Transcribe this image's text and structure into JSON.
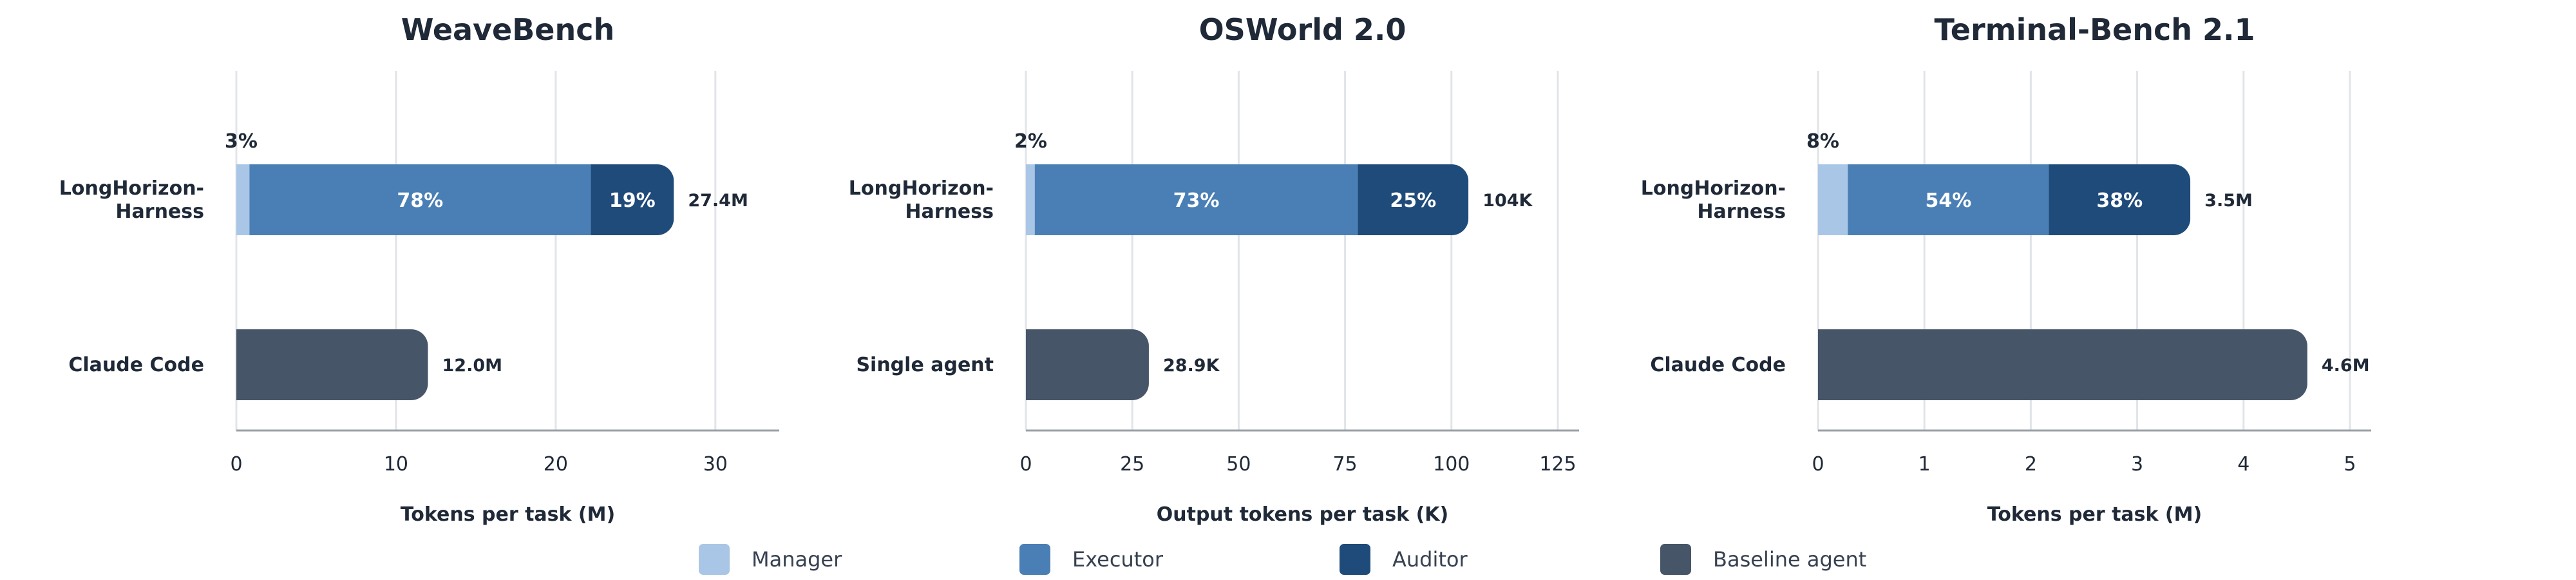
{
  "colors": {
    "manager": "#a9c6e6",
    "executor": "#4a7fb5",
    "auditor": "#1f4b7a",
    "baseline": "#475569",
    "grid": "#e1e4e8",
    "axis": "#9aa0a6"
  },
  "legend": [
    {
      "key": "manager",
      "label": "Manager",
      "color": "#a9c6e6"
    },
    {
      "key": "executor",
      "label": "Executor",
      "color": "#4a7fb5"
    },
    {
      "key": "auditor",
      "label": "Auditor",
      "color": "#1f4b7a"
    },
    {
      "key": "baseline",
      "label": "Baseline agent",
      "color": "#475569"
    }
  ],
  "chart_data": [
    {
      "type": "bar",
      "orientation": "horizontal",
      "stacked": true,
      "title": "WeaveBench",
      "xlabel": "Tokens per task (M)",
      "xlim": [
        0,
        34
      ],
      "xticks": [
        0,
        10,
        20,
        30
      ],
      "grid": true,
      "categories": [
        "LongHorizon-\nHarness",
        "Claude Code"
      ],
      "bars": [
        {
          "category": "LongHorizon-\nHarness",
          "total": 27.4,
          "total_label": "27.4M",
          "segments": [
            {
              "series": "Manager",
              "share": 3,
              "label": "3%"
            },
            {
              "series": "Executor",
              "share": 78,
              "label": "78%"
            },
            {
              "series": "Auditor",
              "share": 19,
              "label": "19%"
            }
          ]
        },
        {
          "category": "Claude Code",
          "total": 12.0,
          "total_label": "12.0M",
          "segments": [
            {
              "series": "Baseline agent",
              "share": 100,
              "label": ""
            }
          ]
        }
      ]
    },
    {
      "type": "bar",
      "orientation": "horizontal",
      "stacked": true,
      "title": "OSWorld 2.0",
      "xlabel": "Output tokens per task (K)",
      "xlim": [
        0,
        130
      ],
      "xticks": [
        0,
        25,
        50,
        75,
        100,
        125
      ],
      "grid": true,
      "categories": [
        "LongHorizon-\nHarness",
        "Single agent"
      ],
      "bars": [
        {
          "category": "LongHorizon-\nHarness",
          "total": 104,
          "total_label": "104K",
          "segments": [
            {
              "series": "Manager",
              "share": 2,
              "label": "2%"
            },
            {
              "series": "Executor",
              "share": 73,
              "label": "73%"
            },
            {
              "series": "Auditor",
              "share": 25,
              "label": "25%"
            }
          ]
        },
        {
          "category": "Single agent",
          "total": 28.9,
          "total_label": "28.9K",
          "segments": [
            {
              "series": "Baseline agent",
              "share": 100,
              "label": ""
            }
          ]
        }
      ]
    },
    {
      "type": "bar",
      "orientation": "horizontal",
      "stacked": true,
      "title": "Terminal-Bench 2.1",
      "xlabel": "Tokens per task (M)",
      "xlim": [
        0,
        5.2
      ],
      "xticks": [
        0,
        1,
        2,
        3,
        4,
        5
      ],
      "grid": true,
      "categories": [
        "LongHorizon-\nHarness",
        "Claude Code"
      ],
      "bars": [
        {
          "category": "LongHorizon-\nHarness",
          "total": 3.5,
          "total_label": "3.5M",
          "segments": [
            {
              "series": "Manager",
              "share": 8,
              "label": "8%"
            },
            {
              "series": "Executor",
              "share": 54,
              "label": "54%"
            },
            {
              "series": "Auditor",
              "share": 38,
              "label": "38%"
            }
          ]
        },
        {
          "category": "Claude Code",
          "total": 4.6,
          "total_label": "4.6M",
          "segments": [
            {
              "series": "Baseline agent",
              "share": 100,
              "label": ""
            }
          ]
        }
      ]
    }
  ]
}
